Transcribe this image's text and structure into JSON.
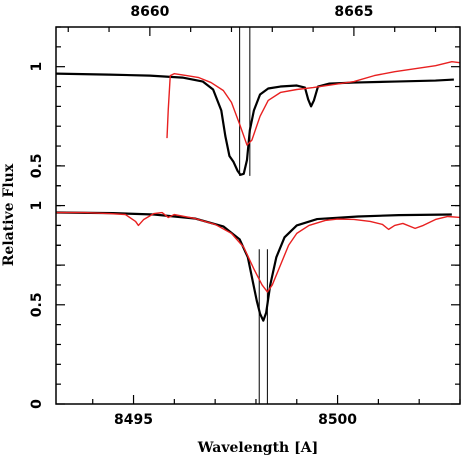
{
  "chart_data": {
    "type": "line",
    "xlabel": "Wavelength [A]",
    "ylabel": "Relative Flux",
    "bottom_axis": {
      "range": [
        8493.1,
        8503.0
      ],
      "ticks": [
        8495,
        8500
      ]
    },
    "top_axis": {
      "range": [
        8657.7,
        8667.6
      ],
      "ticks": [
        8660,
        8665
      ]
    },
    "y_axis": {
      "range": [
        0,
        1.2
      ],
      "ticks": [
        0,
        0.5,
        1
      ],
      "tick_labels": [
        "0",
        "0.5",
        "1"
      ]
    },
    "panels": [
      {
        "name": "upper",
        "axis": "top",
        "offset": 0.7,
        "scale": 1.0,
        "marker_lines": [
          8662.2,
          8662.45
        ],
        "series": [
          {
            "name": "",
            "color": "#000000",
            "points": [
              [
                8657.7,
                0.965
              ],
              [
                8659.0,
                0.96
              ],
              [
                8660.0,
                0.955
              ],
              [
                8660.8,
                0.945
              ],
              [
                8661.3,
                0.925
              ],
              [
                8661.55,
                0.885
              ],
              [
                8661.75,
                0.78
              ],
              [
                8661.85,
                0.65
              ],
              [
                8661.95,
                0.55
              ],
              [
                8662.05,
                0.52
              ],
              [
                8662.15,
                0.475
              ],
              [
                8662.22,
                0.455
              ],
              [
                8662.3,
                0.46
              ],
              [
                8662.38,
                0.53
              ],
              [
                8662.45,
                0.68
              ],
              [
                8662.55,
                0.78
              ],
              [
                8662.7,
                0.86
              ],
              [
                8662.9,
                0.89
              ],
              [
                8663.2,
                0.9
              ],
              [
                8663.6,
                0.905
              ],
              [
                8663.8,
                0.895
              ],
              [
                8663.88,
                0.835
              ],
              [
                8663.95,
                0.8
              ],
              [
                8664.02,
                0.83
              ],
              [
                8664.12,
                0.9
              ],
              [
                8664.4,
                0.915
              ],
              [
                8665.0,
                0.92
              ],
              [
                8666.0,
                0.925
              ],
              [
                8667.0,
                0.93
              ],
              [
                8667.45,
                0.935
              ]
            ]
          },
          {
            "name": "",
            "color": "#e82020",
            "points": [
              [
                8660.42,
                0.64
              ],
              [
                8660.45,
                0.78
              ],
              [
                8660.5,
                0.955
              ],
              [
                8660.6,
                0.965
              ],
              [
                8660.9,
                0.955
              ],
              [
                8661.2,
                0.945
              ],
              [
                8661.5,
                0.92
              ],
              [
                8661.8,
                0.88
              ],
              [
                8662.0,
                0.82
              ],
              [
                8662.2,
                0.71
              ],
              [
                8662.38,
                0.605
              ],
              [
                8662.5,
                0.63
              ],
              [
                8662.7,
                0.75
              ],
              [
                8662.9,
                0.83
              ],
              [
                8663.2,
                0.87
              ],
              [
                8663.6,
                0.885
              ],
              [
                8664.0,
                0.895
              ],
              [
                8664.5,
                0.91
              ],
              [
                8665.0,
                0.925
              ],
              [
                8665.5,
                0.955
              ],
              [
                8666.0,
                0.975
              ],
              [
                8666.5,
                0.99
              ],
              [
                8667.0,
                1.005
              ],
              [
                8667.4,
                1.025
              ],
              [
                8667.6,
                1.02
              ]
            ]
          }
        ]
      },
      {
        "name": "lower",
        "axis": "bottom",
        "offset": 0.0,
        "scale": 1.0,
        "marker_lines": [
          8498.08,
          8498.28
        ],
        "series": [
          {
            "name": "",
            "color": "#000000",
            "points": [
              [
                8493.1,
                0.965
              ],
              [
                8494.5,
                0.962
              ],
              [
                8495.5,
                0.955
              ],
              [
                8496.5,
                0.935
              ],
              [
                8497.2,
                0.895
              ],
              [
                8497.6,
                0.83
              ],
              [
                8497.8,
                0.74
              ],
              [
                8497.92,
                0.62
              ],
              [
                8498.02,
                0.52
              ],
              [
                8498.1,
                0.455
              ],
              [
                8498.18,
                0.42
              ],
              [
                8498.25,
                0.46
              ],
              [
                8498.35,
                0.6
              ],
              [
                8498.5,
                0.74
              ],
              [
                8498.7,
                0.84
              ],
              [
                8499.0,
                0.9
              ],
              [
                8499.5,
                0.932
              ],
              [
                8500.5,
                0.945
              ],
              [
                8501.5,
                0.952
              ],
              [
                8502.8,
                0.955
              ]
            ]
          },
          {
            "name": "",
            "color": "#e82020",
            "points": [
              [
                8493.1,
                0.965
              ],
              [
                8493.8,
                0.965
              ],
              [
                8494.4,
                0.96
              ],
              [
                8494.8,
                0.955
              ],
              [
                8495.05,
                0.92
              ],
              [
                8495.12,
                0.9
              ],
              [
                8495.25,
                0.93
              ],
              [
                8495.5,
                0.96
              ],
              [
                8495.7,
                0.965
              ],
              [
                8495.85,
                0.94
              ],
              [
                8496.0,
                0.955
              ],
              [
                8496.5,
                0.935
              ],
              [
                8497.0,
                0.905
              ],
              [
                8497.4,
                0.86
              ],
              [
                8497.7,
                0.79
              ],
              [
                8497.95,
                0.68
              ],
              [
                8498.15,
                0.6
              ],
              [
                8498.28,
                0.565
              ],
              [
                8498.4,
                0.6
              ],
              [
                8498.6,
                0.7
              ],
              [
                8498.8,
                0.8
              ],
              [
                8499.0,
                0.86
              ],
              [
                8499.3,
                0.9
              ],
              [
                8499.7,
                0.925
              ],
              [
                8500.0,
                0.932
              ],
              [
                8500.4,
                0.93
              ],
              [
                8500.8,
                0.92
              ],
              [
                8501.1,
                0.905
              ],
              [
                8501.25,
                0.88
              ],
              [
                8501.4,
                0.9
              ],
              [
                8501.6,
                0.91
              ],
              [
                8501.9,
                0.885
              ],
              [
                8502.1,
                0.9
              ],
              [
                8502.4,
                0.93
              ],
              [
                8502.7,
                0.945
              ],
              [
                8503.0,
                0.94
              ]
            ]
          }
        ]
      }
    ]
  }
}
